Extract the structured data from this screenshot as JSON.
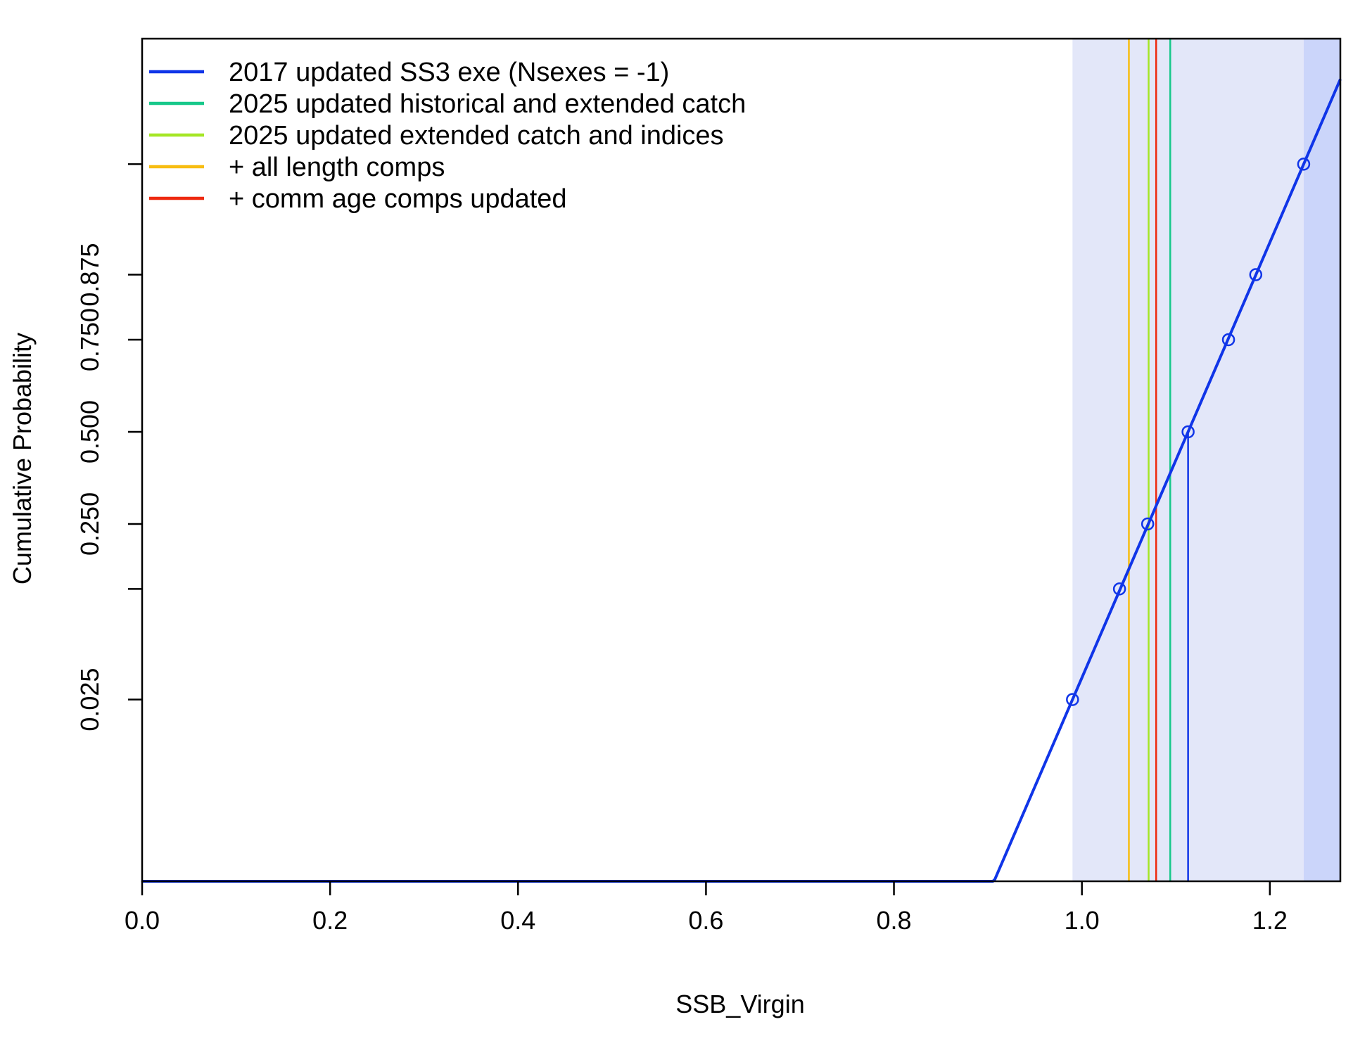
{
  "chart_data": {
    "type": "line",
    "xlabel": "SSB_Virgin",
    "ylabel": "Cumulative Probability",
    "xlim": [
      0,
      1.275
    ],
    "x_ticks": [
      0.0,
      0.2,
      0.4,
      0.6,
      0.8,
      1.0,
      1.2
    ],
    "x_tick_labels": [
      "0.0",
      "0.2",
      "0.4",
      "0.6",
      "0.8",
      "1.0",
      "1.2"
    ],
    "y_ticks": [
      0.025,
      0.125,
      0.25,
      0.5,
      0.75,
      0.875,
      0.975
    ],
    "y_tick_labels": [
      "0.025",
      "",
      "0.250",
      "0.500",
      "0.750",
      "0.875",
      ""
    ],
    "y_scale": "probit",
    "grid": false,
    "legend_position": "top-left",
    "series": [
      {
        "name": "2017 updated SS3 exe (Nsexes = -1)",
        "color": "#1035e8",
        "type": "cumulative-curve",
        "median": 1.113,
        "points": [
          [
            0.99,
            0.025
          ],
          [
            1.04,
            0.125
          ],
          [
            1.07,
            0.25
          ],
          [
            1.113,
            0.5
          ],
          [
            1.156,
            0.75
          ],
          [
            1.185,
            0.875
          ],
          [
            1.236,
            0.975
          ]
        ],
        "shaded_interval": [
          0.99,
          1.236
        ]
      },
      {
        "name": "2025 updated historical and extended catch",
        "color": "#17c88a",
        "type": "vline",
        "x": 1.094
      },
      {
        "name": "2025 updated extended catch and indices",
        "color": "#a5e625",
        "type": "vline",
        "x": 1.071
      },
      {
        "name": "+ all length comps",
        "color": "#f7bd12",
        "type": "vline",
        "x": 1.05
      },
      {
        "name": "+ comm age comps updated",
        "color": "#ee2a10",
        "type": "vline",
        "x": 1.079
      }
    ],
    "colors": {
      "band_light": "#e3e7f9",
      "band_dark": "#cbd5fa",
      "curve": "#1035e8"
    }
  }
}
